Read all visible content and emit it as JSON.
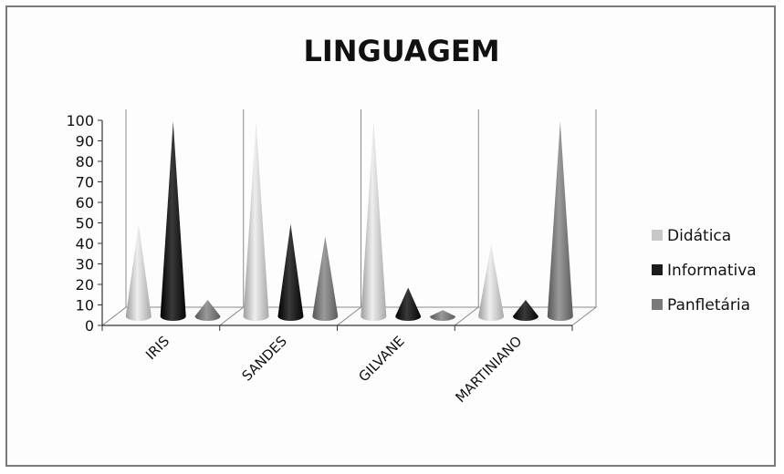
{
  "chart_data": {
    "type": "bar",
    "style": "3d-cone",
    "title": "LINGUAGEM",
    "categories": [
      "IRIS",
      "SANDES",
      "GILVANE",
      "MARTINIANO"
    ],
    "series": [
      {
        "name": "Didática",
        "values": [
          45,
          95,
          95,
          35
        ],
        "color": "#c8c8c8"
      },
      {
        "name": "Informativa",
        "values": [
          95,
          45,
          14,
          8
        ],
        "color": "#1c1c1c"
      },
      {
        "name": "Panfletária",
        "values": [
          8,
          39,
          3,
          95
        ],
        "color": "#7a7a7a"
      }
    ],
    "ylim": [
      0,
      100
    ],
    "yticks": [
      "100",
      "90",
      "80",
      "70",
      "60",
      "50",
      "40",
      "30",
      "20",
      "10",
      "0"
    ],
    "grid": false,
    "legend": "right"
  }
}
